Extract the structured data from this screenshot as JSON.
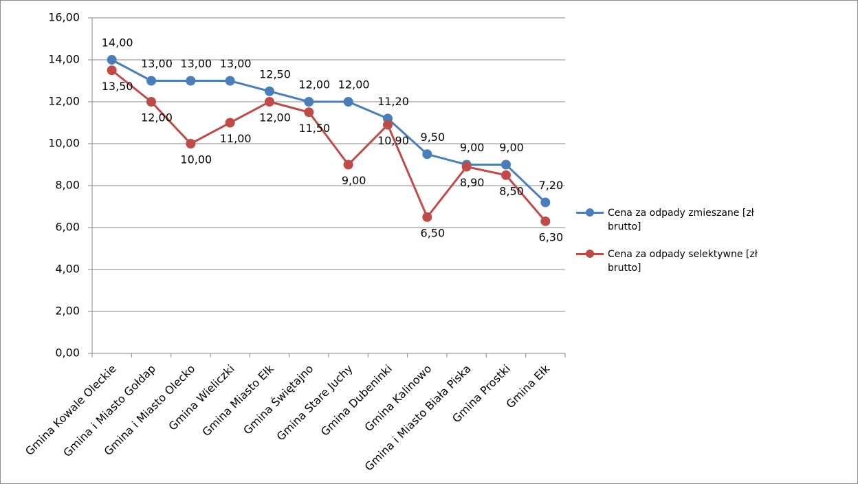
{
  "chart_data": {
    "type": "line",
    "categories": [
      "Gmina Kowale Oleckie",
      "Gmina i Miasto Gołdap",
      "Gmina i Miasto Olecko",
      "Gmina Wieliczki",
      "Gmina Miasto Ełk",
      "Gmina Świętajno",
      "Gmina Stare Juchy",
      "Gmina Dubeninki",
      "Gmina Kalinowo",
      "Gmina i Miasto Biała Piska",
      "Gmina Prostki",
      "Gmina Ełk"
    ],
    "series": [
      {
        "name": "Cena za odpady zmieszane [zł brutto]",
        "color": "#4a7ebb",
        "values": [
          14,
          13,
          13,
          13,
          12.5,
          12,
          12,
          11.2,
          9.5,
          9,
          9,
          7.2
        ],
        "value_labels": [
          "14,00",
          "13,00",
          "13,00",
          "13,00",
          "12,50",
          "12,00",
          "12,00",
          "11,20",
          "9,50",
          "9,00",
          "9,00",
          "7,20"
        ]
      },
      {
        "name": "Cena za odpady selektywne [zł brutto]",
        "color": "#be4b48",
        "values": [
          13.5,
          12,
          10,
          11,
          12,
          11.5,
          9,
          10.9,
          6.5,
          8.9,
          8.5,
          6.3
        ],
        "value_labels": [
          "13,50",
          "12,00",
          "10,00",
          "11,00",
          "12,00",
          "11,50",
          "9,00",
          "10,90",
          "6,50",
          "8,90",
          "8,50",
          "6,30"
        ]
      }
    ],
    "ylim": [
      0,
      16
    ],
    "yticks": [
      {
        "value": 0,
        "label": "0,00"
      },
      {
        "value": 2,
        "label": "2,00"
      },
      {
        "value": 4,
        "label": "4,00"
      },
      {
        "value": 6,
        "label": "6,00"
      },
      {
        "value": 8,
        "label": "8,00"
      },
      {
        "value": 10,
        "label": "10,00"
      },
      {
        "value": 12,
        "label": "12,00"
      },
      {
        "value": 14,
        "label": "14,00"
      },
      {
        "value": 16,
        "label": "16,00"
      }
    ],
    "grid": true,
    "legend": "right"
  }
}
